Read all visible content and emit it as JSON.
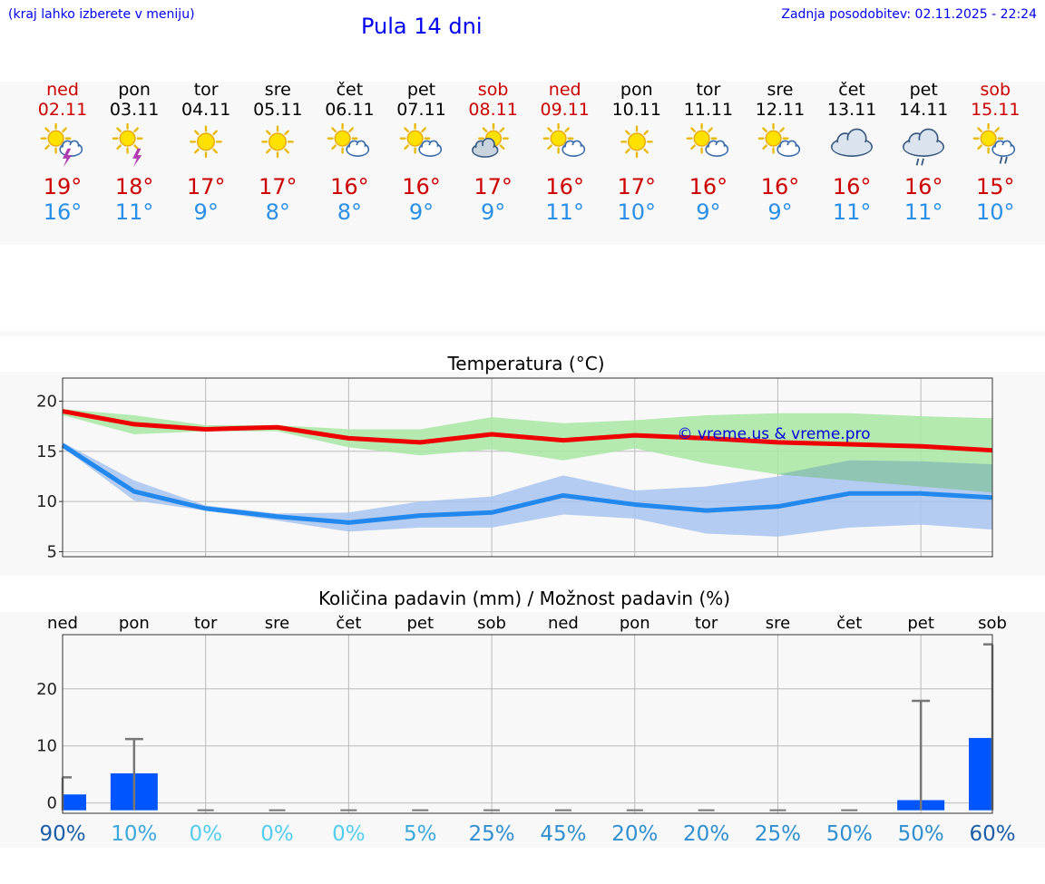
{
  "header": {
    "note": "(kraj lahko izberete v meniju)",
    "title": "Pula 14 dni",
    "updated": "Zadnja posodobitev: 02.11.2025 - 22:24"
  },
  "forecast": [
    {
      "day": "ned",
      "date": "02.11",
      "tmax": "19°",
      "tmin": "16°",
      "icon": "sun-cloud-thunder-icon",
      "weekend": true
    },
    {
      "day": "pon",
      "date": "03.11",
      "tmax": "18°",
      "tmin": "11°",
      "icon": "sun-thunder-icon",
      "weekend": false
    },
    {
      "day": "tor",
      "date": "04.11",
      "tmax": "17°",
      "tmin": "9°",
      "icon": "sun-icon",
      "weekend": false
    },
    {
      "day": "sre",
      "date": "05.11",
      "tmax": "17°",
      "tmin": "8°",
      "icon": "sun-icon",
      "weekend": false
    },
    {
      "day": "čet",
      "date": "06.11",
      "tmax": "16°",
      "tmin": "8°",
      "icon": "sun-cloud-icon",
      "weekend": false
    },
    {
      "day": "pet",
      "date": "07.11",
      "tmax": "16°",
      "tmin": "9°",
      "icon": "sun-cloud-icon",
      "weekend": false
    },
    {
      "day": "sob",
      "date": "08.11",
      "tmax": "17°",
      "tmin": "9°",
      "icon": "cloud-sun-icon",
      "weekend": true
    },
    {
      "day": "ned",
      "date": "09.11",
      "tmax": "16°",
      "tmin": "11°",
      "icon": "sun-cloud-icon",
      "weekend": true
    },
    {
      "day": "pon",
      "date": "10.11",
      "tmax": "17°",
      "tmin": "10°",
      "icon": "sun-icon",
      "weekend": false
    },
    {
      "day": "tor",
      "date": "11.11",
      "tmax": "16°",
      "tmin": "9°",
      "icon": "sun-cloud-icon",
      "weekend": false
    },
    {
      "day": "sre",
      "date": "12.11",
      "tmax": "16°",
      "tmin": "9°",
      "icon": "sun-cloud-icon",
      "weekend": false
    },
    {
      "day": "čet",
      "date": "13.11",
      "tmax": "16°",
      "tmin": "11°",
      "icon": "cloudy-icon",
      "weekend": false
    },
    {
      "day": "pet",
      "date": "14.11",
      "tmax": "16°",
      "tmin": "11°",
      "icon": "cloud-rain-icon",
      "weekend": false
    },
    {
      "day": "sob",
      "date": "15.11",
      "tmax": "15°",
      "tmin": "10°",
      "icon": "sun-cloud-rain-icon",
      "weekend": true
    }
  ],
  "colors": {
    "max_line": "#ee0000",
    "min_line": "#2288ee",
    "max_band": "#a8e6a3",
    "min_band": "#a8c4f0",
    "overlap_band": "#8cc4ac",
    "bar": "#0055ff",
    "whisker": "#777777",
    "weekend": "#cc0000",
    "link": "#0000ee"
  },
  "chart_data": [
    {
      "type": "line",
      "title": "Temperatura (°C)",
      "watermark": "© vreme.us & vreme.pro",
      "ylim": [
        4.5,
        22.3
      ],
      "yticks": [
        5,
        10,
        15,
        20
      ],
      "x": [
        0,
        1,
        2,
        3,
        4,
        5,
        6,
        7,
        8,
        9,
        10,
        11,
        12,
        13
      ],
      "series": [
        {
          "name": "max",
          "values": [
            19.0,
            17.7,
            17.2,
            17.4,
            16.3,
            15.9,
            16.7,
            16.1,
            16.6,
            16.3,
            15.9,
            15.7,
            15.5,
            15.1
          ],
          "band_low": [
            18.6,
            16.7,
            17.0,
            17.0,
            15.4,
            14.6,
            15.2,
            14.1,
            15.3,
            13.8,
            12.7,
            12.1,
            11.5,
            10.9
          ],
          "band_high": [
            19.2,
            18.6,
            17.6,
            17.6,
            17.2,
            17.2,
            18.4,
            17.8,
            18.1,
            18.6,
            18.8,
            18.8,
            18.5,
            18.3
          ]
        },
        {
          "name": "min",
          "values": [
            15.6,
            11.0,
            9.3,
            8.5,
            7.9,
            8.6,
            8.9,
            10.6,
            9.7,
            9.1,
            9.5,
            10.8,
            10.8,
            10.4
          ],
          "band_low": [
            15.4,
            10.1,
            9.1,
            8.1,
            7.0,
            7.4,
            7.4,
            8.7,
            8.3,
            6.8,
            6.5,
            7.4,
            7.7,
            7.2
          ],
          "band_high": [
            15.9,
            12.1,
            9.6,
            8.8,
            8.9,
            10.0,
            10.5,
            12.6,
            11.1,
            11.5,
            12.5,
            14.1,
            14.0,
            13.7
          ]
        }
      ]
    },
    {
      "type": "bar",
      "title": "Količina padavin (mm) / Možnost padavin (%)",
      "categories": [
        "ned",
        "pon",
        "tor",
        "sre",
        "čet",
        "pet",
        "sob",
        "ned",
        "pon",
        "tor",
        "sre",
        "čet",
        "pet",
        "sob"
      ],
      "ylim": [
        -1.8,
        29.5
      ],
      "yticks": [
        0,
        10,
        20
      ],
      "values": [
        1.5,
        5.2,
        0,
        0,
        0,
        0,
        0,
        0,
        0,
        0,
        0,
        0,
        0.5,
        11.4
      ],
      "error_high": [
        4.5,
        11.2,
        0,
        0,
        0,
        0,
        0,
        0,
        0,
        0,
        0,
        0,
        17.9,
        27.8
      ],
      "probability": [
        "90%",
        "10%",
        "0%",
        "0%",
        "0%",
        "5%",
        "25%",
        "45%",
        "20%",
        "20%",
        "25%",
        "50%",
        "50%",
        "60%"
      ],
      "probability_values": [
        90,
        10,
        0,
        0,
        0,
        5,
        25,
        45,
        20,
        20,
        25,
        50,
        50,
        60
      ]
    }
  ]
}
